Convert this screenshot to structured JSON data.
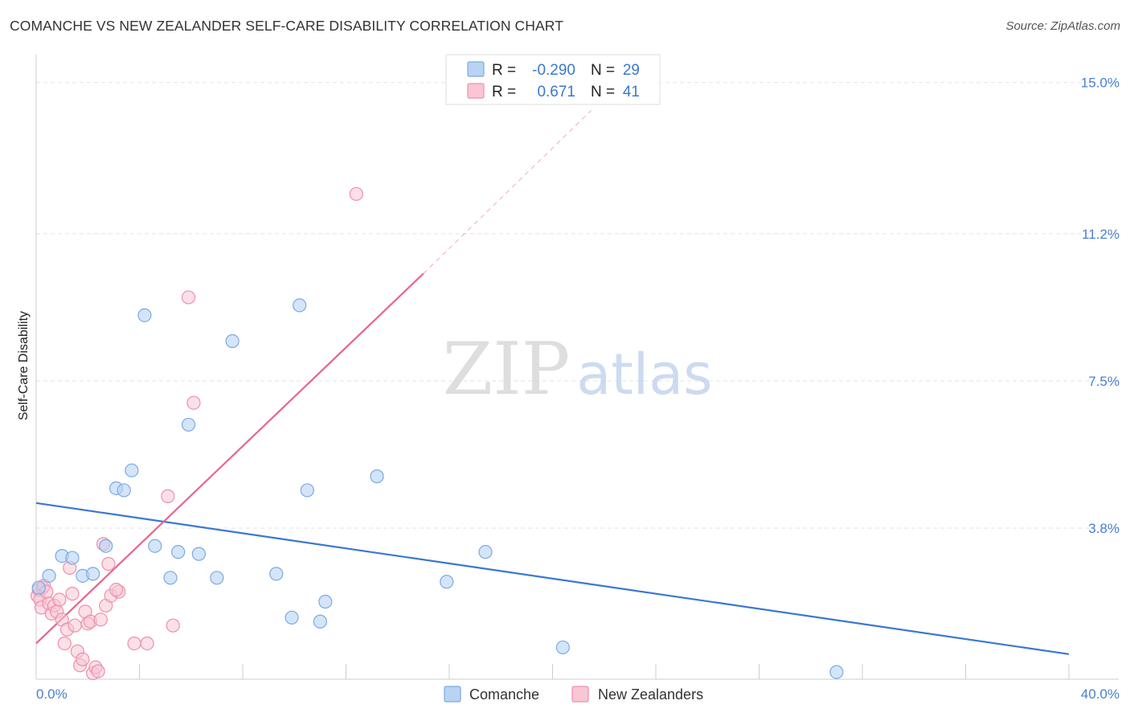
{
  "header": {
    "title": "COMANCHE VS NEW ZEALANDER SELF-CARE DISABILITY CORRELATION CHART",
    "source": "Source: ZipAtlas.com"
  },
  "watermark": {
    "zip": "ZIP",
    "atlas": "atlas"
  },
  "colors": {
    "comanche_fill": "#b8d3f3",
    "comanche_stroke": "#7aaae3",
    "comanche_line": "#3a78d0",
    "nz_fill": "#f8c6d4",
    "nz_stroke": "#ee8fab",
    "nz_line": "#e8658d",
    "tick_text": "#4a7fd0",
    "grid": "#e3e3e3"
  },
  "legend": {
    "rows": [
      {
        "r_label": "R =",
        "r_value": "-0.290",
        "n_label": "N =",
        "n_value": "29"
      },
      {
        "r_label": "R =",
        "r_value": "0.671",
        "n_label": "N =",
        "n_value": "41"
      }
    ]
  },
  "bottom_legend": [
    "Comanche",
    "New Zealanders"
  ],
  "chart_data": {
    "type": "scatter",
    "title": "COMANCHE VS NEW ZEALANDER SELF-CARE DISABILITY CORRELATION CHART",
    "xlabel": "",
    "ylabel": "Self-Care Disability",
    "xlim": [
      0,
      40
    ],
    "ylim": [
      0,
      15.5
    ],
    "x_tick_labels": [
      "0.0%",
      "40.0%"
    ],
    "y_ticks": [
      3.8,
      7.5,
      11.2,
      15.0
    ],
    "y_tick_labels": [
      "3.8%",
      "7.5%",
      "11.2%",
      "15.0%"
    ],
    "grid": true,
    "legend_position": "top-center",
    "series": [
      {
        "name": "Comanche",
        "r": -0.29,
        "n": 29,
        "trend": {
          "x": [
            0,
            40
          ],
          "y": [
            4.43,
            0.63
          ]
        },
        "points": [
          [
            0.1,
            2.3
          ],
          [
            0.5,
            2.6
          ],
          [
            1.0,
            3.1
          ],
          [
            1.4,
            3.05
          ],
          [
            1.8,
            2.6
          ],
          [
            2.2,
            2.65
          ],
          [
            2.7,
            3.35
          ],
          [
            3.1,
            4.8
          ],
          [
            3.4,
            4.75
          ],
          [
            3.7,
            5.25
          ],
          [
            4.2,
            9.15
          ],
          [
            4.6,
            3.35
          ],
          [
            5.2,
            2.55
          ],
          [
            5.5,
            3.2
          ],
          [
            5.9,
            6.4
          ],
          [
            6.3,
            3.15
          ],
          [
            7.0,
            2.55
          ],
          [
            7.6,
            8.5
          ],
          [
            9.3,
            2.65
          ],
          [
            9.9,
            1.55
          ],
          [
            10.2,
            9.4
          ],
          [
            10.5,
            4.75
          ],
          [
            11.0,
            1.45
          ],
          [
            11.2,
            1.95
          ],
          [
            13.2,
            5.1
          ],
          [
            15.9,
            2.45
          ],
          [
            17.4,
            3.2
          ],
          [
            20.4,
            0.8
          ],
          [
            31.0,
            0.18
          ]
        ]
      },
      {
        "name": "New Zealanders",
        "r": 0.671,
        "n": 41,
        "trend": {
          "x": [
            0,
            15
          ],
          "y": [
            0.9,
            10.2
          ]
        },
        "trend_dashed": {
          "x": [
            15,
            21.5
          ],
          "y": [
            10.2,
            14.3
          ]
        },
        "points": [
          [
            0.05,
            2.1
          ],
          [
            0.1,
            2.25
          ],
          [
            0.15,
            2.0
          ],
          [
            0.2,
            1.8
          ],
          [
            0.25,
            2.3
          ],
          [
            0.3,
            2.35
          ],
          [
            0.4,
            2.2
          ],
          [
            0.5,
            1.9
          ],
          [
            0.6,
            1.65
          ],
          [
            0.7,
            1.85
          ],
          [
            0.8,
            1.7
          ],
          [
            0.9,
            2.0
          ],
          [
            1.0,
            1.5
          ],
          [
            1.1,
            0.9
          ],
          [
            1.2,
            1.25
          ],
          [
            1.3,
            2.8
          ],
          [
            1.4,
            2.15
          ],
          [
            1.5,
            1.35
          ],
          [
            1.6,
            0.7
          ],
          [
            1.7,
            0.35
          ],
          [
            1.8,
            0.5
          ],
          [
            1.9,
            1.7
          ],
          [
            2.0,
            1.4
          ],
          [
            2.1,
            1.45
          ],
          [
            2.2,
            0.15
          ],
          [
            2.3,
            0.3
          ],
          [
            2.4,
            0.2
          ],
          [
            2.5,
            1.5
          ],
          [
            2.6,
            3.4
          ],
          [
            2.7,
            1.85
          ],
          [
            2.8,
            2.9
          ],
          [
            2.9,
            2.1
          ],
          [
            3.2,
            2.2
          ],
          [
            3.1,
            2.25
          ],
          [
            3.8,
            0.9
          ],
          [
            4.3,
            0.9
          ],
          [
            5.1,
            4.6
          ],
          [
            5.3,
            1.35
          ],
          [
            5.9,
            9.6
          ],
          [
            6.1,
            6.95
          ],
          [
            12.4,
            12.2
          ]
        ]
      }
    ]
  }
}
